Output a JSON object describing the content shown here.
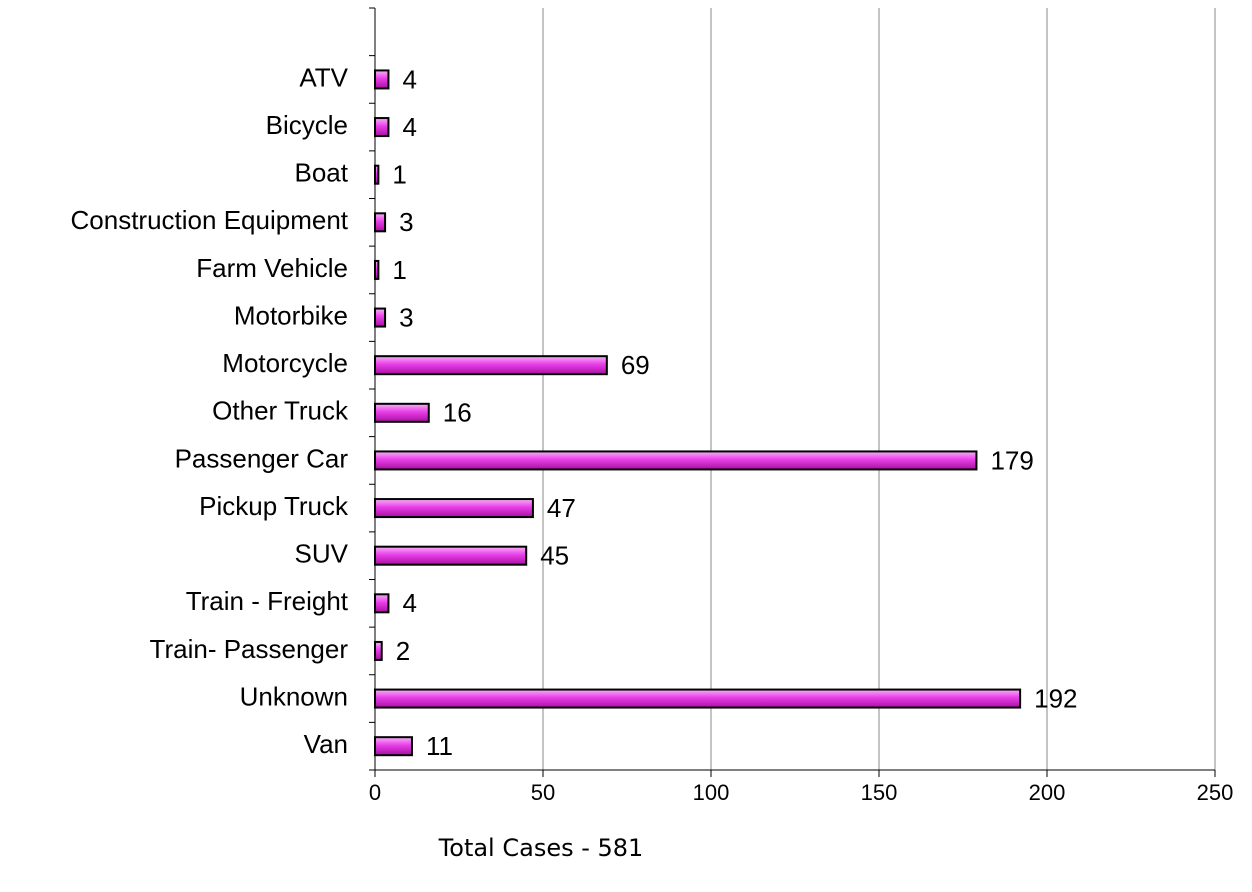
{
  "chart_data": {
    "type": "barh",
    "xlabel": "Total Cases - 581",
    "categories": [
      null,
      "ATV",
      "Bicycle",
      "Boat",
      "Construction Equipment",
      "Farm Vehicle",
      "Motorbike",
      "Motorcycle",
      "Other Truck",
      "Passenger Car",
      "Pickup Truck",
      "SUV",
      "Train - Freight",
      "Train- Passenger",
      "Unknown",
      "Van"
    ],
    "values": [
      null,
      4,
      4,
      1,
      3,
      1,
      3,
      69,
      16,
      179,
      47,
      45,
      4,
      2,
      192,
      11
    ],
    "color": "#e83ee8",
    "xlim": [
      0,
      250
    ],
    "xticks": [
      0,
      50,
      100,
      150,
      200,
      250
    ],
    "grid": true
  }
}
